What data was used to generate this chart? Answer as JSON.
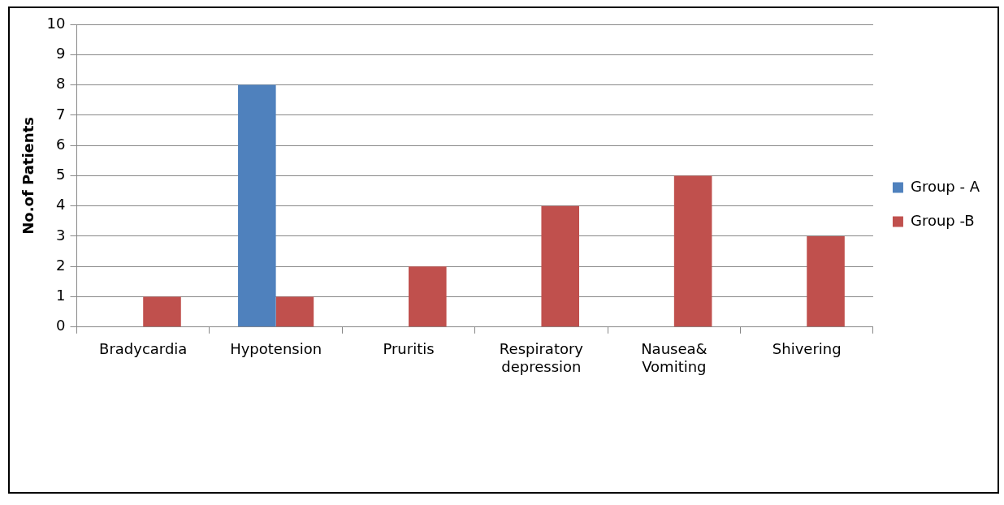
{
  "chart_data": {
    "type": "bar",
    "ylabel": "No.of Patients",
    "categories": [
      "Bradycardia",
      "Hypotension",
      "Pruritis",
      "Respiratory depression",
      "Nausea& Vomiting",
      "Shivering"
    ],
    "series": [
      {
        "name": "Group - A",
        "color": "#4f81bd",
        "values": [
          0,
          8,
          0,
          0,
          0,
          0
        ]
      },
      {
        "name": "Group -B",
        "color": "#c0504d",
        "values": [
          1,
          1,
          2,
          4,
          5,
          3
        ]
      }
    ],
    "ylim": [
      0,
      10
    ],
    "yticks": [
      0,
      1,
      2,
      3,
      4,
      5,
      6,
      7,
      8,
      9,
      10
    ],
    "grid": "y",
    "legend": "right"
  }
}
